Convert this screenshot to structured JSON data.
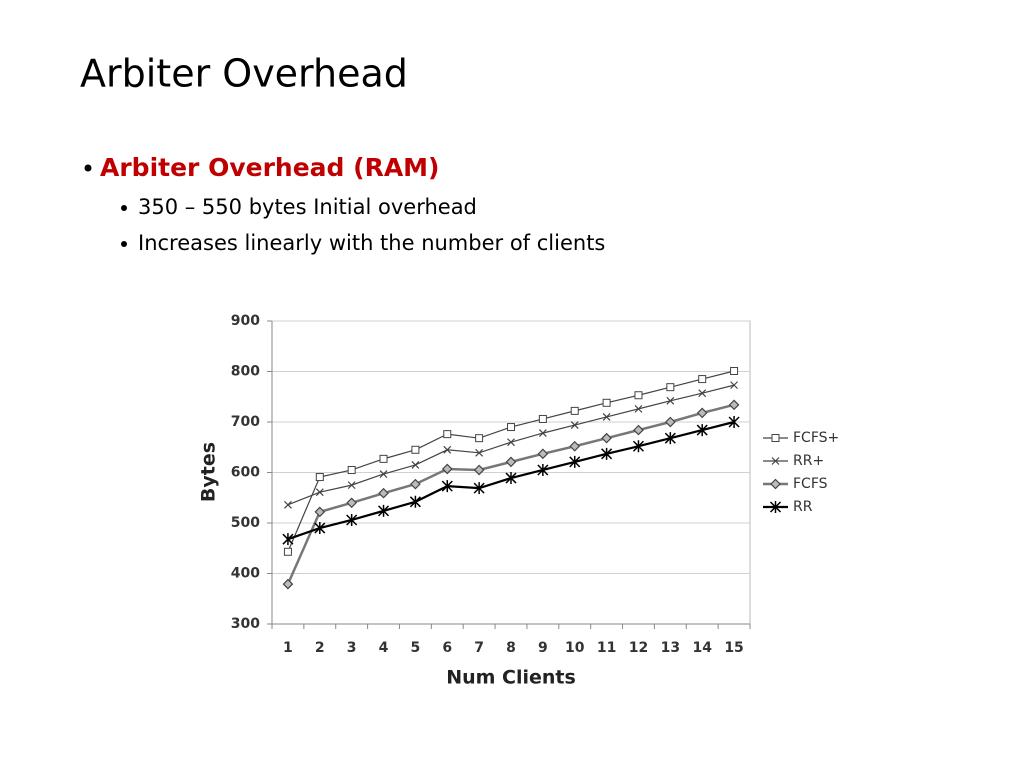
{
  "header": {
    "title": "Arbiter Overhead"
  },
  "bullets": [
    {
      "text": "Arbiter Overhead (RAM)",
      "children": [
        "350 – 550 bytes Initial overhead",
        "Increases linearly with the number of clients"
      ]
    }
  ],
  "chart_data": {
    "type": "line",
    "x_label": "Num Clients",
    "y_label": "Bytes",
    "categories": [
      "1",
      "2",
      "3",
      "4",
      "5",
      "6",
      "7",
      "8",
      "9",
      "10",
      "11",
      "12",
      "13",
      "14",
      "15"
    ],
    "ylim": [
      300,
      900
    ],
    "yticks": [
      300,
      400,
      500,
      600,
      700,
      800,
      900
    ],
    "grid": true,
    "legend": "right",
    "series": [
      {
        "name": "FCFS+",
        "color": "#444444",
        "marker": "square",
        "values": [
          443,
          591,
          605,
          627,
          645,
          676,
          668,
          690,
          706,
          722,
          738,
          753,
          769,
          785,
          801
        ]
      },
      {
        "name": "RR+",
        "color": "#444444",
        "marker": "x",
        "values": [
          536,
          561,
          575,
          597,
          615,
          645,
          639,
          660,
          678,
          694,
          710,
          726,
          742,
          757,
          773
        ]
      },
      {
        "name": "FCFS",
        "color": "#777777",
        "marker": "diamond",
        "values": [
          379,
          522,
          540,
          559,
          577,
          607,
          605,
          621,
          637,
          652,
          668,
          684,
          700,
          718,
          734
        ]
      },
      {
        "name": "RR",
        "color": "#000000",
        "marker": "asterisk",
        "values": [
          468,
          490,
          506,
          524,
          542,
          573,
          569,
          589,
          605,
          621,
          637,
          652,
          668,
          684,
          700
        ]
      }
    ]
  }
}
